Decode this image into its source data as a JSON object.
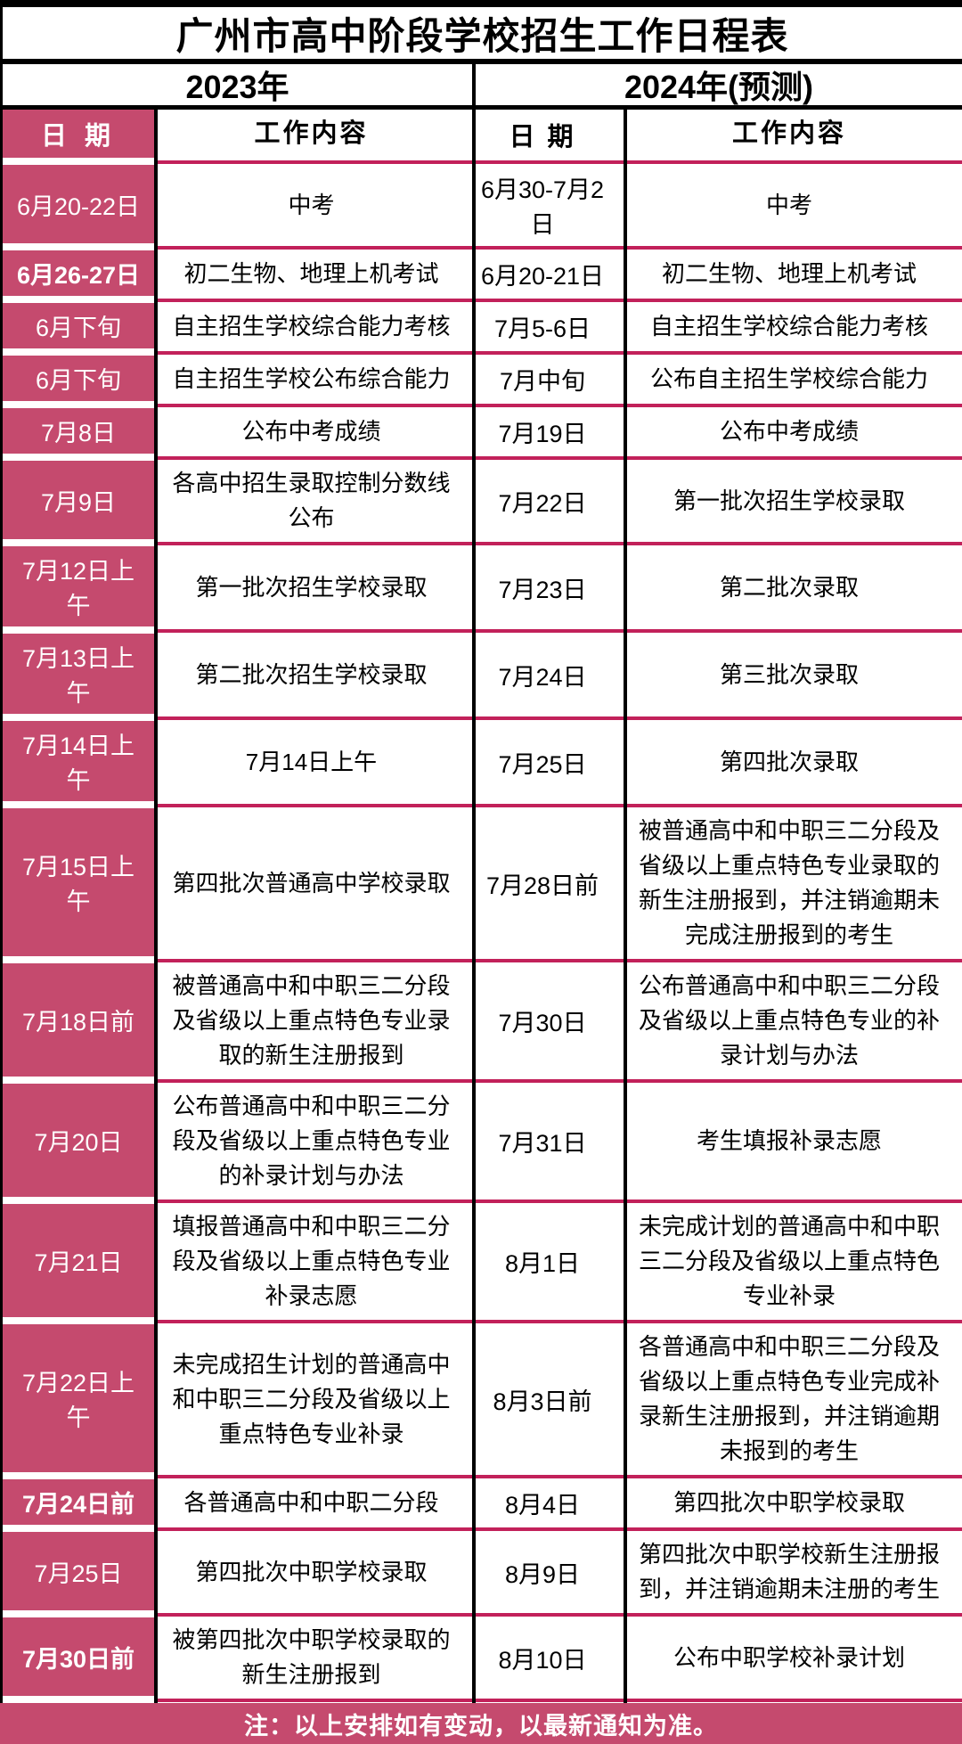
{
  "title": "广州市高中阶段学校招生工作日程表",
  "year_headers": {
    "left": "2023年",
    "right": "2024年(预测)"
  },
  "column_headers": {
    "date_2023": "日 期",
    "work_2023": "工作内容",
    "date_2024": "日 期",
    "work_2024": "工作内容"
  },
  "colors": {
    "pink_background": "#c54a6e",
    "pink_separator": "#c2215a",
    "border_black": "#000000"
  },
  "footer_note": "注：以上安排如有变动，以最新通知为准。",
  "table": {
    "rows": [
      {
        "d2023": "6月20-22日",
        "w2023": "中考",
        "d2024": "6月30-7月2日",
        "w2024": "中考"
      },
      {
        "d2023": "6月26-27日",
        "w2023": "初二生物、地理上机考试",
        "d2024": "6月20-21日",
        "w2024": "初二生物、地理上机考试"
      },
      {
        "d2023": "6月下旬",
        "w2023": "自主招生学校综合能力考核",
        "d2024": "7月5-6日",
        "w2024": "自主招生学校综合能力考核"
      },
      {
        "d2023": "6月下旬",
        "w2023": "自主招生学校公布综合能力",
        "d2024": "7月中旬",
        "w2024": "公布自主招生学校综合能力"
      },
      {
        "d2023": "7月8日",
        "w2023": "公布中考成绩",
        "d2024": "7月19日",
        "w2024": "公布中考成绩"
      },
      {
        "d2023": "7月9日",
        "w2023": "各高中招生录取控制分数线公布",
        "d2024": "7月22日",
        "w2024": "第一批次招生学校录取"
      },
      {
        "d2023": "7月12日上午",
        "w2023": "第一批次招生学校录取",
        "d2024": "7月23日",
        "w2024": "第二批次录取"
      },
      {
        "d2023": "7月13日上午",
        "w2023": "第二批次招生学校录取",
        "d2024": "7月24日",
        "w2024": "第三批次录取"
      },
      {
        "d2023": "7月14日上午",
        "w2023": "7月14日上午",
        "d2024": "7月25日",
        "w2024": "第四批次录取"
      },
      {
        "d2023": "7月15日上午",
        "w2023": "第四批次普通高中学校录取",
        "d2024": "7月28日前",
        "w2024": "被普通高中和中职三二分段及省级以上重点特色专业录取的新生注册报到，并注销逾期未完成注册报到的考生"
      },
      {
        "d2023": "7月18日前",
        "w2023": "被普通高中和中职三二分段及省级以上重点特色专业录取的新生注册报到",
        "d2024": "7月30日",
        "w2024": "公布普通高中和中职三二分段及省级以上重点特色专业的补录计划与办法"
      },
      {
        "d2023": "7月20日",
        "w2023": "公布普通高中和中职三二分段及省级以上重点特色专业的补录计划与办法",
        "d2024": "7月31日",
        "w2024": "考生填报补录志愿"
      },
      {
        "d2023": "7月21日",
        "w2023": "填报普通高中和中职三二分段及省级以上重点特色专业补录志愿",
        "d2024": "8月1日",
        "w2024": "未完成计划的普通高中和中职三二分段及省级以上重点特色专业补录"
      },
      {
        "d2023": "7月22日上午",
        "w2023": "未完成招生计划的普通高中和中职三二分段及省级以上重点特色专业补录",
        "d2024": "8月3日前",
        "w2024": "各普通高中和中职三二分段及省级以上重点特色专业完成补录新生注册报到，并注销逾期未报到的考生"
      },
      {
        "d2023": "7月24日前",
        "w2023": "各普通高中和中职二分段",
        "d2024": "8月4日",
        "w2024": "第四批次中职学校录取"
      },
      {
        "d2023": "7月25日",
        "w2023": "第四批次中职学校录取",
        "d2024": "8月9日",
        "w2024": "第四批次中职学校新生注册报到，并注销逾期未注册的考生"
      },
      {
        "d2023": "7月30日前",
        "w2023": "被第四批次中职学校录取的新生注册报到",
        "d2024": "8月10日",
        "w2024": "公布中职学校补录计划"
      }
    ]
  }
}
